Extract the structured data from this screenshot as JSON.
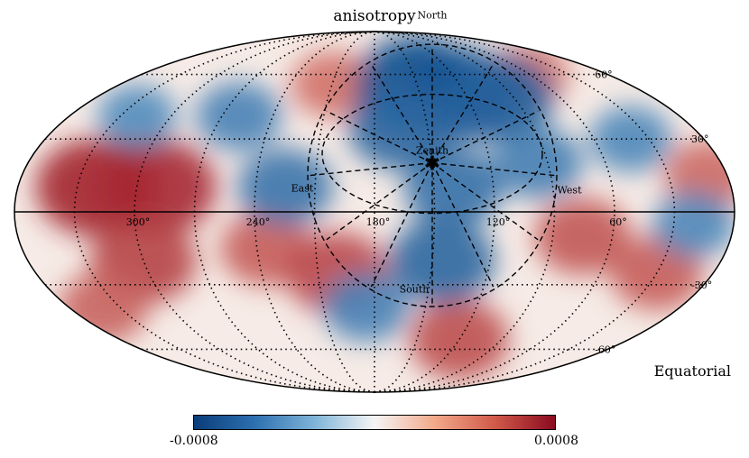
{
  "title": "anisotropy",
  "frame_label": "Equatorial",
  "projection": "mollweide",
  "longitude_labels": [
    "300°",
    "240°",
    "180°",
    "120°",
    "60°"
  ],
  "latitude_labels": [
    "60°",
    "30°",
    "-30°",
    "-60°"
  ],
  "horizon_labels": {
    "north": "North",
    "south": "South",
    "east": "East",
    "west": "West",
    "zenith": "Zenith"
  },
  "colorbar": {
    "min_label": "-0.0008",
    "max_label": "0.0008",
    "min": -0.0008,
    "max": 0.0008,
    "colors": [
      "#0a3d7a",
      "#2d6fb0",
      "#7fb4d8",
      "#f5f5f5",
      "#f2a98a",
      "#d15a4a",
      "#8b0a20"
    ]
  },
  "map_regions": {
    "blue": [
      {
        "lon": 150,
        "lat": 55,
        "strength": 0.95
      },
      {
        "lon": 125,
        "lat": 50,
        "strength": 0.9
      },
      {
        "lon": 100,
        "lat": 48,
        "strength": 0.75
      },
      {
        "lon": 165,
        "lat": 35,
        "strength": 0.7
      },
      {
        "lon": 140,
        "lat": 10,
        "strength": 0.6
      },
      {
        "lon": 145,
        "lat": -20,
        "strength": 0.7
      },
      {
        "lon": 225,
        "lat": 10,
        "strength": 0.55
      },
      {
        "lon": 260,
        "lat": 40,
        "strength": 0.4
      },
      {
        "lon": 40,
        "lat": 30,
        "strength": 0.35
      },
      {
        "lon": 20,
        "lat": -5,
        "strength": 0.35
      },
      {
        "lon": 185,
        "lat": -40,
        "strength": 0.4
      },
      {
        "lon": 320,
        "lat": 40,
        "strength": 0.3
      },
      {
        "lon": 95,
        "lat": 20,
        "strength": 0.45
      }
    ],
    "red": [
      {
        "lon": 320,
        "lat": 10,
        "strength": 0.95
      },
      {
        "lon": 290,
        "lat": 10,
        "strength": 0.9
      },
      {
        "lon": 300,
        "lat": -20,
        "strength": 0.7
      },
      {
        "lon": 235,
        "lat": -15,
        "strength": 0.5
      },
      {
        "lon": 200,
        "lat": -25,
        "strength": 0.65
      },
      {
        "lon": 120,
        "lat": -55,
        "strength": 0.6
      },
      {
        "lon": 75,
        "lat": -10,
        "strength": 0.55
      },
      {
        "lon": 30,
        "lat": -25,
        "strength": 0.5
      },
      {
        "lon": 10,
        "lat": 15,
        "strength": 0.4
      },
      {
        "lon": 340,
        "lat": -40,
        "strength": 0.45
      },
      {
        "lon": 210,
        "lat": 55,
        "strength": 0.35
      },
      {
        "lon": 60,
        "lat": 60,
        "strength": 0.3
      }
    ]
  },
  "zenith": {
    "lon": 150,
    "lat": 20
  }
}
